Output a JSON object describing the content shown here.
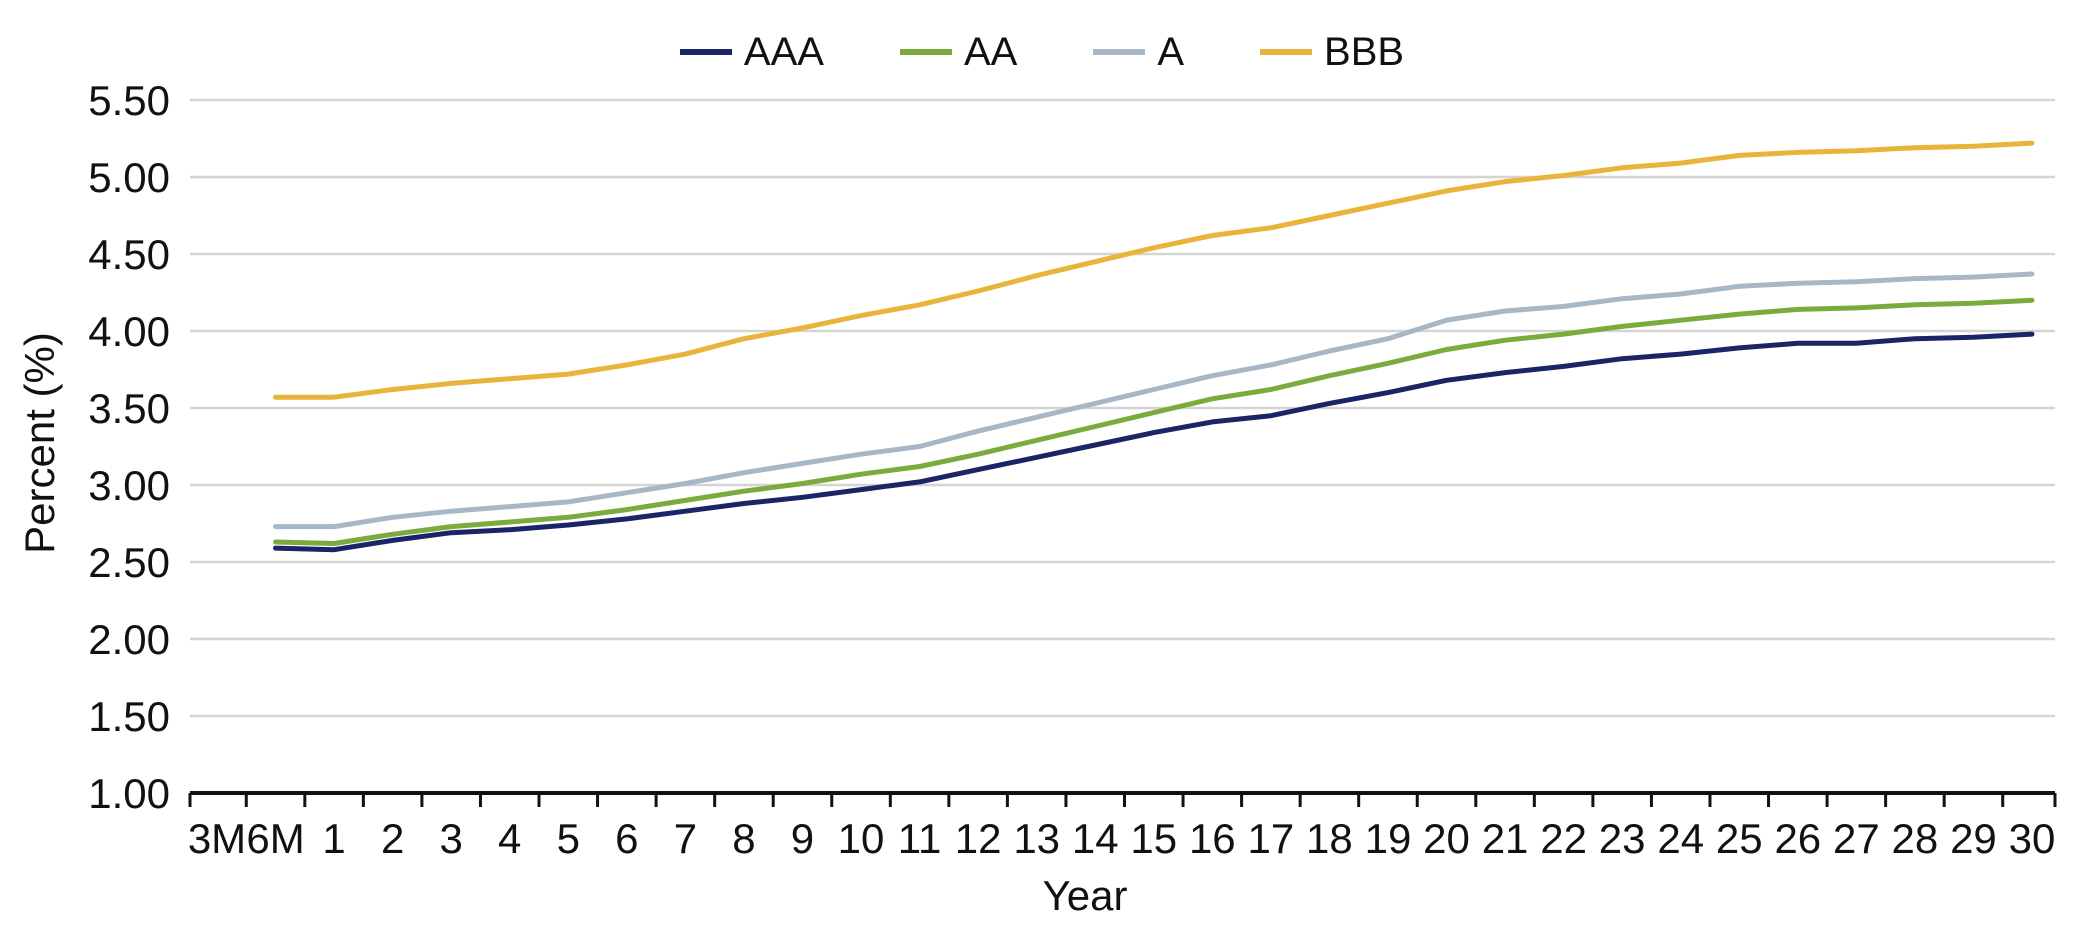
{
  "chart_data": {
    "type": "line",
    "title": "",
    "xlabel": "Year",
    "ylabel": "Percent (%)",
    "ylim": [
      1.0,
      5.5
    ],
    "yticks": [
      "1.00",
      "1.50",
      "2.00",
      "2.50",
      "3.00",
      "3.50",
      "4.00",
      "4.50",
      "5.00",
      "5.50"
    ],
    "categories": [
      "3M",
      "6M",
      "1",
      "2",
      "3",
      "4",
      "5",
      "6",
      "7",
      "8",
      "9",
      "10",
      "11",
      "12",
      "13",
      "14",
      "15",
      "16",
      "17",
      "18",
      "19",
      "20",
      "21",
      "22",
      "23",
      "24",
      "25",
      "26",
      "27",
      "28",
      "29",
      "30"
    ],
    "grid": "horizontal",
    "legend_position": "top-center",
    "series": [
      {
        "name": "AAA",
        "color": "#1b2466",
        "values": [
          null,
          2.59,
          2.58,
          2.64,
          2.69,
          2.71,
          2.74,
          2.78,
          2.83,
          2.88,
          2.92,
          2.97,
          3.02,
          3.1,
          3.18,
          3.26,
          3.34,
          3.41,
          3.45,
          3.53,
          3.6,
          3.68,
          3.73,
          3.77,
          3.82,
          3.85,
          3.89,
          3.92,
          3.92,
          3.95,
          3.96,
          3.98
        ]
      },
      {
        "name": "AA",
        "color": "#7aab3c",
        "values": [
          null,
          2.63,
          2.62,
          2.68,
          2.73,
          2.76,
          2.79,
          2.84,
          2.9,
          2.96,
          3.01,
          3.07,
          3.12,
          3.2,
          3.29,
          3.38,
          3.47,
          3.56,
          3.62,
          3.71,
          3.79,
          3.88,
          3.94,
          3.98,
          4.03,
          4.07,
          4.11,
          4.14,
          4.15,
          4.17,
          4.18,
          4.2
        ]
      },
      {
        "name": "A",
        "color": "#a7b7c6",
        "values": [
          null,
          2.73,
          2.73,
          2.79,
          2.83,
          2.86,
          2.89,
          2.95,
          3.01,
          3.08,
          3.14,
          3.2,
          3.25,
          3.35,
          3.44,
          3.53,
          3.62,
          3.71,
          3.78,
          3.87,
          3.95,
          4.07,
          4.13,
          4.16,
          4.21,
          4.24,
          4.29,
          4.31,
          4.32,
          4.34,
          4.35,
          4.37
        ]
      },
      {
        "name": "BBB",
        "color": "#e8b43c",
        "values": [
          null,
          3.57,
          3.57,
          3.62,
          3.66,
          3.69,
          3.72,
          3.78,
          3.85,
          3.95,
          4.02,
          4.1,
          4.17,
          4.26,
          4.36,
          4.45,
          4.54,
          4.62,
          4.67,
          4.75,
          4.83,
          4.91,
          4.97,
          5.01,
          5.06,
          5.09,
          5.14,
          5.16,
          5.17,
          5.19,
          5.2,
          5.22
        ]
      }
    ]
  }
}
